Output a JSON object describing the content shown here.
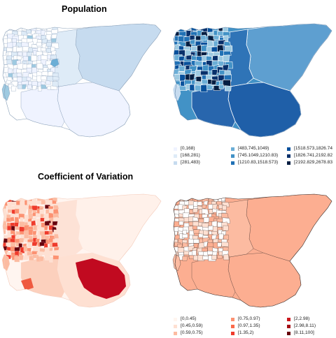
{
  "titles": {
    "population": "Population",
    "cv": "Coefficient of Variation"
  },
  "palettes": {
    "blues": [
      "#eff3ff",
      "#c6dbef",
      "#9ecae1",
      "#6baed6",
      "#4292c6",
      "#2171b5",
      "#08519c",
      "#08306b",
      "#041e42"
    ],
    "reds": [
      "#fff5f0",
      "#fee0d2",
      "#fcbba1",
      "#fc9272",
      "#fb6a4a",
      "#ef3b2c",
      "#cb181d",
      "#a50f15",
      "#67000d"
    ]
  },
  "legend_population": [
    {
      "label": "[0,168)",
      "color": "#eff3ff"
    },
    {
      "label": "[168,281)",
      "color": "#deebf7"
    },
    {
      "label": "[281,483)",
      "color": "#c6dbef"
    },
    {
      "label": "[483,745,1049)",
      "color": "#6baed6"
    },
    {
      "label": "[745.1049,1210.83)",
      "color": "#4292c6"
    },
    {
      "label": "[1210.83,1518.573)",
      "color": "#2171b5"
    },
    {
      "label": "[1518.573,1826.74",
      "color": "#08519c"
    },
    {
      "label": "[1826.741,2192.82",
      "color": "#08306b"
    },
    {
      "label": "[2192.829,2678.83",
      "color": "#041e42"
    }
  ],
  "legend_cv": [
    {
      "label": "[0,0.45)",
      "color": "#fff5f0"
    },
    {
      "label": "[0.45,0.59)",
      "color": "#fee0d2"
    },
    {
      "label": "[0.59,0.75)",
      "color": "#fcbba1"
    },
    {
      "label": "[0.75,0.97)",
      "color": "#fc9272"
    },
    {
      "label": "[0.97,1.35)",
      "color": "#fb6a4a"
    },
    {
      "label": "[1.35,2)",
      "color": "#ef3b2c"
    },
    {
      "label": "[2,2.98)",
      "color": "#cb181d"
    },
    {
      "label": "[2.98,8.11)",
      "color": "#a50f15"
    },
    {
      "label": "[8.11,100]",
      "color": "#67000d"
    }
  ]
}
